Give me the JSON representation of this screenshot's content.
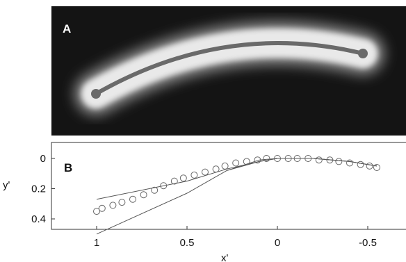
{
  "panel_a": {
    "label": "A"
  },
  "panel_b": {
    "label": "B"
  },
  "chart_data": {
    "type": "scatter",
    "xlabel": "x'",
    "ylabel": "y'",
    "x_reversed": true,
    "y_reversed": true,
    "xlim": [
      1.25,
      -0.7
    ],
    "ylim": [
      0.5,
      -0.05
    ],
    "x_ticks": [
      {
        "value": 1,
        "label": "1"
      },
      {
        "value": 0.5,
        "label": "0.5"
      },
      {
        "value": 0,
        "label": "0"
      },
      {
        "value": -0.5,
        "label": "-0.5"
      }
    ],
    "y_ticks": [
      {
        "value": 0,
        "label": "0"
      },
      {
        "value": 0.2,
        "label": "0.2"
      },
      {
        "value": 0.4,
        "label": "0.4"
      }
    ],
    "grid": false,
    "points": [
      {
        "x": 1.0,
        "y": 0.35
      },
      {
        "x": 0.97,
        "y": 0.33
      },
      {
        "x": 0.91,
        "y": 0.31
      },
      {
        "x": 0.86,
        "y": 0.29
      },
      {
        "x": 0.8,
        "y": 0.27
      },
      {
        "x": 0.74,
        "y": 0.24
      },
      {
        "x": 0.68,
        "y": 0.21
      },
      {
        "x": 0.63,
        "y": 0.18
      },
      {
        "x": 0.57,
        "y": 0.15
      },
      {
        "x": 0.52,
        "y": 0.13
      },
      {
        "x": 0.46,
        "y": 0.11
      },
      {
        "x": 0.4,
        "y": 0.09
      },
      {
        "x": 0.34,
        "y": 0.07
      },
      {
        "x": 0.29,
        "y": 0.05
      },
      {
        "x": 0.23,
        "y": 0.03
      },
      {
        "x": 0.17,
        "y": 0.02
      },
      {
        "x": 0.11,
        "y": 0.01
      },
      {
        "x": 0.06,
        "y": 0.0
      },
      {
        "x": 0.0,
        "y": 0.0
      },
      {
        "x": -0.06,
        "y": 0.0
      },
      {
        "x": -0.11,
        "y": 0.0
      },
      {
        "x": -0.17,
        "y": 0.0
      },
      {
        "x": -0.23,
        "y": 0.01
      },
      {
        "x": -0.29,
        "y": 0.01
      },
      {
        "x": -0.34,
        "y": 0.02
      },
      {
        "x": -0.4,
        "y": 0.03
      },
      {
        "x": -0.46,
        "y": 0.04
      },
      {
        "x": -0.51,
        "y": 0.05
      },
      {
        "x": -0.55,
        "y": 0.06
      }
    ],
    "lines": [
      {
        "x": [
          1.0,
          0.5,
          0.28,
          0.1,
          0.0,
          -0.2,
          -0.4,
          -0.55
        ],
        "y": [
          0.5,
          0.23,
          0.08,
          0.01,
          0.0,
          0.0,
          0.02,
          0.05
        ]
      },
      {
        "x": [
          1.0,
          0.5,
          0.28,
          0.1,
          0.0,
          -0.2,
          -0.4,
          -0.55
        ],
        "y": [
          0.27,
          0.15,
          0.07,
          0.02,
          0.0,
          0.0,
          0.02,
          0.05
        ]
      },
      {
        "x": [
          0.28,
          0.1,
          0.0,
          -0.2,
          -0.4,
          -0.55
        ],
        "y": [
          0.08,
          0.02,
          0.0,
          0.0,
          0.02,
          0.05
        ]
      }
    ]
  },
  "colors": {
    "image_background": "#141414",
    "halo": "#e8e8e8",
    "filament": "#6a6a6a",
    "marker": "#666666",
    "line": "#555555",
    "axis": "#333333"
  }
}
